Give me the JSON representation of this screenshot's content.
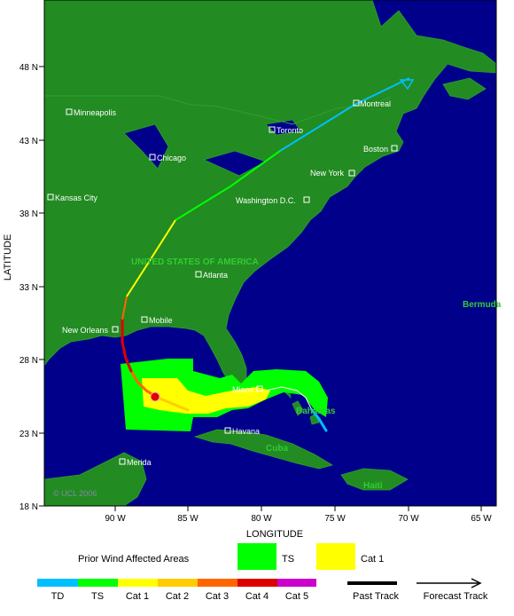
{
  "map": {
    "lat_ticks": [
      "48 N",
      "43 N",
      "38 N",
      "33 N",
      "28 N",
      "23 N",
      "18 N"
    ],
    "lon_ticks": [
      "90 W",
      "85 W",
      "80 W",
      "75 W",
      "70 W",
      "65 W"
    ],
    "xlabel": "LONGITUDE",
    "ylabel": "LATITUDE",
    "copyright": "© UCL 2006",
    "countries": [
      "UNITED STATES OF AMERICA",
      "Cuba",
      "Bahamas",
      "Haiti",
      "Bermuda"
    ],
    "cities": [
      {
        "name": "Minneapolis"
      },
      {
        "name": "Chicago"
      },
      {
        "name": "Kansas City"
      },
      {
        "name": "Toronto"
      },
      {
        "name": "Montreal"
      },
      {
        "name": "Boston"
      },
      {
        "name": "New York"
      },
      {
        "name": "Washington D.C."
      },
      {
        "name": "Atlanta"
      },
      {
        "name": "Mobile"
      },
      {
        "name": "New Orleans"
      },
      {
        "name": "Miami"
      },
      {
        "name": "Havana"
      },
      {
        "name": "Merida"
      }
    ],
    "colors": {
      "ocean": "#00008b",
      "land": "#228b22",
      "ts": "#00ff00",
      "cat1": "#ffff00",
      "cat2": "#ffcc00",
      "cat3": "#ff6600",
      "cat4": "#dd0000",
      "cat5": "#cc00cc",
      "td": "#00bfff"
    }
  },
  "legend": {
    "prior_title": "Prior Wind Affected Areas",
    "ts_label": "TS",
    "cat1_label": "Cat 1",
    "scale": [
      "TD",
      "TS",
      "Cat 1",
      "Cat 2",
      "Cat 3",
      "Cat 4",
      "Cat 5"
    ],
    "past_track": "Past Track",
    "forecast_track": "Forecast Track"
  }
}
